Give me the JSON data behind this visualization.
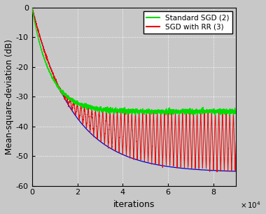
{
  "title": "",
  "xlabel": "iterations",
  "ylabel": "Mean-square-deviation (dB)",
  "xlim": [
    0,
    90000
  ],
  "ylim": [
    -60,
    0
  ],
  "xticks": [
    0,
    20000,
    40000,
    60000,
    80000
  ],
  "yticks": [
    0,
    -10,
    -20,
    -30,
    -40,
    -50,
    -60
  ],
  "sgd_color": "#00dd00",
  "rr_color": "#ee0000",
  "rr_lower_color": "#0000cc",
  "legend_labels": [
    "Standard SGD (2)",
    "SGD with RR (3)"
  ],
  "background_color": "#c8c8c8",
  "grid_color": "white",
  "sgd_plateau": -35.0,
  "rr_upper_plateau": -35.0,
  "rr_lower_final": -55.5,
  "oscillation_period": 1600,
  "n_iter": 90000
}
